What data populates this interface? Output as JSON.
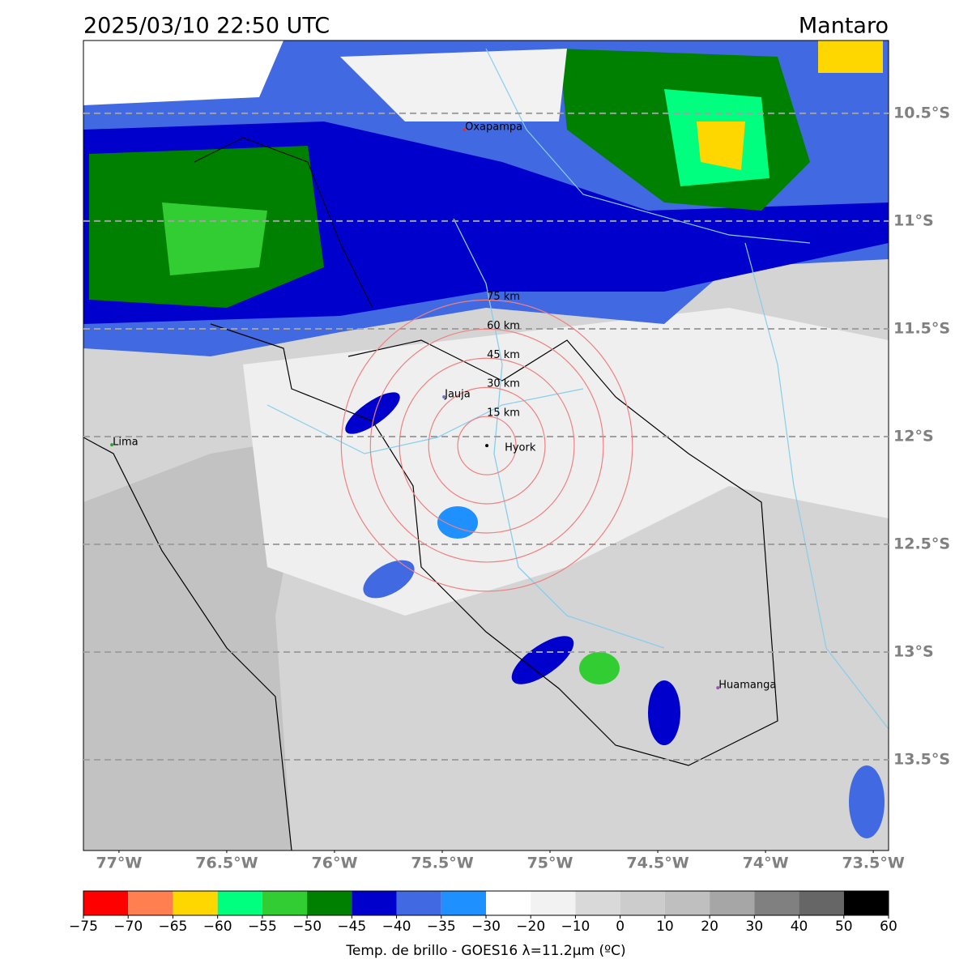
{
  "header": {
    "title": "2025/03/10 22:50 UTC",
    "region": "Mantaro"
  },
  "map": {
    "xlim": [
      -77.165,
      -73.429
    ],
    "ylim": [
      -10.162,
      -13.921
    ],
    "xticks": [
      {
        "value": -77,
        "label": "77°W"
      },
      {
        "value": -76.5,
        "label": "76.5°W"
      },
      {
        "value": -76,
        "label": "76°W"
      },
      {
        "value": -75.5,
        "label": "75.5°W"
      },
      {
        "value": -75,
        "label": "75°W"
      },
      {
        "value": -74.5,
        "label": "74.5°W"
      },
      {
        "value": -74,
        "label": "74°W"
      },
      {
        "value": -73.5,
        "label": "73.5°W"
      }
    ],
    "yticks": [
      {
        "value": -10.5,
        "label": "10.5°S"
      },
      {
        "value": -11,
        "label": "11°S"
      },
      {
        "value": -11.5,
        "label": "11.5°S"
      },
      {
        "value": -12,
        "label": "12°S"
      },
      {
        "value": -12.5,
        "label": "12.5°S"
      },
      {
        "value": -13,
        "label": "13°S"
      },
      {
        "value": -13.5,
        "label": "13.5°S"
      }
    ],
    "grid": true,
    "cities": [
      {
        "name": "Oxapampa",
        "lon": -75.398,
        "lat": -10.576,
        "color": "#e03030"
      },
      {
        "name": "Jauja",
        "lon": -75.492,
        "lat": -11.816,
        "color": "#7070c0"
      },
      {
        "name": "Hyork",
        "lon": -75.293,
        "lat": -12.042,
        "color": "#000000"
      },
      {
        "name": "Lima",
        "lon": -77.033,
        "lat": -12.038,
        "color": "#30a030"
      },
      {
        "name": "Huamanga",
        "lon": -74.221,
        "lat": -13.166,
        "color": "#a050c0"
      }
    ],
    "rings": [
      {
        "radius_km": 15,
        "label": "15 km"
      },
      {
        "radius_km": 30,
        "label": "30 km"
      },
      {
        "radius_km": 45,
        "label": "45 km"
      },
      {
        "radius_km": 60,
        "label": "60 km"
      },
      {
        "radius_km": 75,
        "label": "75 km"
      }
    ],
    "ring_color": "#f08080"
  },
  "colorbar": {
    "label": "Temp. de brillo - GOES16 λ=11.2μm (ºC)",
    "ticks": [
      {
        "value": -75,
        "label": "−75"
      },
      {
        "value": -70,
        "label": "−70"
      },
      {
        "value": -65,
        "label": "−65"
      },
      {
        "value": -60,
        "label": "−60"
      },
      {
        "value": -55,
        "label": "−55"
      },
      {
        "value": -50,
        "label": "−50"
      },
      {
        "value": -45,
        "label": "−45"
      },
      {
        "value": -40,
        "label": "−40"
      },
      {
        "value": -35,
        "label": "−35"
      },
      {
        "value": -30,
        "label": "−30"
      },
      {
        "value": -20,
        "label": "−20"
      },
      {
        "value": -10,
        "label": "−10"
      },
      0,
      10,
      20,
      30,
      40,
      50,
      60
    ],
    "colors": [
      "#ff0000",
      "#ff7f50",
      "#ffd700",
      "#00ff7f",
      "#32cd32",
      "#008000",
      "#0000cd",
      "#4169e1",
      "#1e90ff",
      "#ffffff",
      "#f2f2f2",
      "#d9d9d9",
      "#cccccc",
      "#bfbfbf",
      "#a6a6a6",
      "#808080",
      "#666666",
      "#000000"
    ]
  }
}
